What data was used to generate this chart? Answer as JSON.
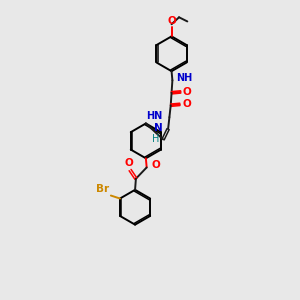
{
  "background_color": "#e8e8e8",
  "bond_color": "#1a1a1a",
  "oxygen_color": "#ff0000",
  "nitrogen_color": "#0000cc",
  "nitrogen_imine_color": "#008080",
  "bromine_color": "#cc8800",
  "fig_width": 3.0,
  "fig_height": 3.0,
  "dpi": 100,
  "xlim": [
    0,
    10
  ],
  "ylim": [
    0,
    18
  ]
}
